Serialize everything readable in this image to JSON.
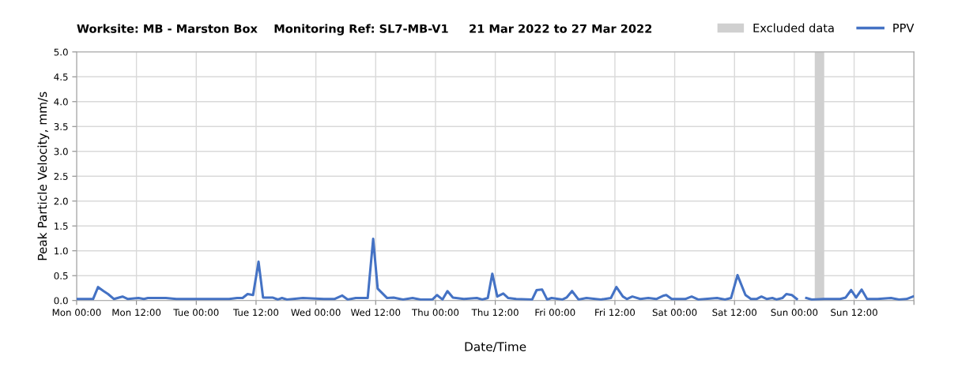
{
  "chart_data": {
    "type": "line",
    "title": "Worksite: MB - Marston Box    Monitoring Ref: SL7-MB-V1     21 Mar 2022 to 27 Mar 2022",
    "xlabel": "Date/Time",
    "ylabel": "Peak Particle Velocity, mm/s",
    "xlim": [
      "2022-03-21T00:00",
      "2022-03-28T00:00"
    ],
    "ylim": [
      0,
      5.0
    ],
    "xticks": [
      {
        "value": "2022-03-21T00:00",
        "label": "Mon 00:00"
      },
      {
        "value": "2022-03-21T12:00",
        "label": "Mon 12:00"
      },
      {
        "value": "2022-03-22T00:00",
        "label": "Tue 00:00"
      },
      {
        "value": "2022-03-22T12:00",
        "label": "Tue 12:00"
      },
      {
        "value": "2022-03-23T00:00",
        "label": "Wed 00:00"
      },
      {
        "value": "2022-03-23T12:00",
        "label": "Wed 12:00"
      },
      {
        "value": "2022-03-24T00:00",
        "label": "Thu 00:00"
      },
      {
        "value": "2022-03-24T12:00",
        "label": "Thu 12:00"
      },
      {
        "value": "2022-03-25T00:00",
        "label": "Fri 00:00"
      },
      {
        "value": "2022-03-25T12:00",
        "label": "Fri 12:00"
      },
      {
        "value": "2022-03-26T00:00",
        "label": "Sat 00:00"
      },
      {
        "value": "2022-03-26T12:00",
        "label": "Sat 12:00"
      },
      {
        "value": "2022-03-27T00:00",
        "label": "Sun 00:00"
      },
      {
        "value": "2022-03-27T12:00",
        "label": "Sun 12:00"
      },
      {
        "value": "2022-03-28T00:00",
        "label": null
      }
    ],
    "yticks": [
      {
        "value": 0,
        "label": "0.0"
      },
      {
        "value": 0.5,
        "label": "0.5"
      },
      {
        "value": 1.0,
        "label": "1.0"
      },
      {
        "value": 1.5,
        "label": "1.5"
      },
      {
        "value": 2.0,
        "label": "2.0"
      },
      {
        "value": 2.5,
        "label": "2.5"
      },
      {
        "value": 3.0,
        "label": "3.0"
      },
      {
        "value": 3.5,
        "label": "3.5"
      },
      {
        "value": 4.0,
        "label": "4.0"
      },
      {
        "value": 4.5,
        "label": "4.5"
      },
      {
        "value": 5.0,
        "label": "5.0"
      }
    ],
    "grid": true,
    "legend": "top right",
    "marker": "none",
    "line_style": "solid",
    "bands": [
      {
        "axis": "x",
        "from": "2022-03-27T04:06",
        "to": "2022-03-27T06:00",
        "label": "Excluded data",
        "color": "#d0d0d0"
      }
    ],
    "series": [
      {
        "name": "PPV",
        "color": "#4472c4",
        "x": [
          "2022-03-21T00:12",
          "2022-03-21T03:18",
          "2022-03-21T04:18",
          "2022-03-21T05:24",
          "2022-03-21T06:18",
          "2022-03-21T07:30",
          "2022-03-21T09:12",
          "2022-03-21T10:18",
          "2022-03-21T12:24",
          "2022-03-21T13:30",
          "2022-03-21T14:18",
          "2022-03-21T17:54",
          "2022-03-21T20:00",
          "2022-03-21T23:12",
          "2022-03-22T06:36",
          "2022-03-22T08:12",
          "2022-03-22T09:18",
          "2022-03-22T10:18",
          "2022-03-22T11:24",
          "2022-03-22T12:30",
          "2022-03-22T13:24",
          "2022-03-22T15:18",
          "2022-03-22T16:24",
          "2022-03-22T17:12",
          "2022-03-22T18:12",
          "2022-03-22T21:24",
          "2022-03-23T01:36",
          "2022-03-23T03:42",
          "2022-03-23T05:18",
          "2022-03-23T06:24",
          "2022-03-23T08:00",
          "2022-03-23T08:30",
          "2022-03-23T10:24",
          "2022-03-23T11:30",
          "2022-03-23T12:24",
          "2022-03-23T14:18",
          "2022-03-23T15:36",
          "2022-03-23T17:30",
          "2022-03-23T19:24",
          "2022-03-23T21:00",
          "2022-03-23T23:24",
          "2022-03-24T00:18",
          "2022-03-24T01:24",
          "2022-03-24T02:24",
          "2022-03-24T03:30",
          "2022-03-24T05:42",
          "2022-03-24T08:18",
          "2022-03-24T09:24",
          "2022-03-24T10:30",
          "2022-03-24T11:24",
          "2022-03-24T12:24",
          "2022-03-24T13:36",
          "2022-03-24T14:36",
          "2022-03-24T16:12",
          "2022-03-24T19:24",
          "2022-03-24T20:18",
          "2022-03-24T21:24",
          "2022-03-24T22:24",
          "2022-03-24T23:18",
          "2022-03-25T01:30",
          "2022-03-25T02:18",
          "2022-03-25T03:24",
          "2022-03-25T04:42",
          "2022-03-25T06:18",
          "2022-03-25T09:12",
          "2022-03-25T11:12",
          "2022-03-25T12:18",
          "2022-03-25T13:36",
          "2022-03-25T14:24",
          "2022-03-25T15:30",
          "2022-03-25T17:06",
          "2022-03-25T18:42",
          "2022-03-25T20:18",
          "2022-03-25T21:48",
          "2022-03-25T22:18",
          "2022-03-25T23:24",
          "2022-03-26T02:06",
          "2022-03-26T03:24",
          "2022-03-26T04:42",
          "2022-03-26T08:30",
          "2022-03-26T10:06",
          "2022-03-26T11:18",
          "2022-03-26T12:36",
          "2022-03-26T14:12",
          "2022-03-26T15:18",
          "2022-03-26T16:24",
          "2022-03-26T17:24",
          "2022-03-26T18:30",
          "2022-03-26T19:36",
          "2022-03-26T20:24",
          "2022-03-26T21:36",
          "2022-03-26T22:24",
          "2022-03-26T23:30",
          "2022-03-27T00:30",
          "2022-03-27T01:30",
          "2022-03-27T02:24",
          "2022-03-27T03:30",
          "2022-03-27T06:00",
          "2022-03-27T08:18",
          "2022-03-27T09:12",
          "2022-03-27T10:18",
          "2022-03-27T11:24",
          "2022-03-27T12:24",
          "2022-03-27T13:30",
          "2022-03-27T14:36",
          "2022-03-27T16:42",
          "2022-03-27T19:24",
          "2022-03-27T21:00",
          "2022-03-27T22:30",
          "2022-03-27T23:48"
        ],
        "values": [
          0.03,
          0.03,
          0.27,
          0.19,
          0.13,
          0.03,
          0.08,
          0.03,
          0.05,
          0.03,
          0.05,
          0.05,
          0.03,
          0.03,
          0.03,
          0.05,
          0.05,
          0.13,
          0.11,
          0.78,
          0.06,
          0.06,
          0.02,
          0.05,
          0.02,
          0.05,
          0.03,
          0.03,
          0.1,
          0.02,
          0.05,
          0.05,
          0.05,
          1.24,
          0.24,
          0.05,
          0.06,
          0.02,
          0.05,
          0.02,
          0.02,
          0.11,
          0.02,
          0.19,
          0.06,
          0.03,
          0.05,
          0.02,
          0.05,
          0.54,
          0.08,
          0.14,
          0.05,
          0.03,
          0.02,
          0.21,
          0.22,
          0.02,
          0.05,
          0.02,
          0.06,
          0.19,
          0.02,
          0.05,
          0.02,
          0.05,
          0.27,
          0.08,
          0.03,
          0.08,
          0.03,
          0.05,
          0.03,
          0.1,
          0.11,
          0.03,
          0.03,
          0.08,
          0.02,
          0.05,
          0.02,
          0.05,
          0.51,
          0.11,
          0.03,
          0.03,
          0.08,
          0.03,
          0.05,
          0.02,
          0.05,
          0.13,
          0.11,
          0.03,
          null,
          0.05,
          0.02,
          0.03,
          0.03,
          0.03,
          0.06,
          0.21,
          0.06,
          0.22,
          0.03,
          0.03,
          0.05,
          0.02,
          0.03,
          0.08
        ]
      }
    ]
  }
}
